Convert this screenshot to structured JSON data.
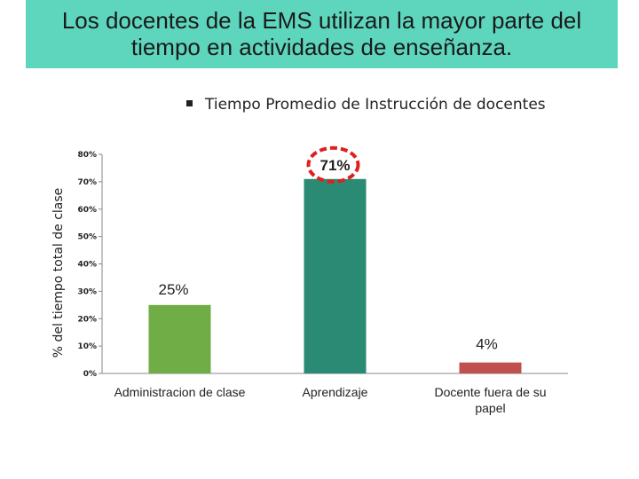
{
  "header": {
    "title_line1": "Los docentes de la EMS utilizan la mayor parte del",
    "title_line2": "tiempo en actividades de enseñanza."
  },
  "subtitle": "Tiempo Promedio de Instrucción de docentes",
  "chart_data": {
    "type": "bar",
    "categories": [
      "Administracion de clase",
      "Aprendizaje",
      "Docente fuera de su papel"
    ],
    "values": [
      25,
      71,
      4
    ],
    "data_labels": [
      "25%",
      "71%",
      "4%"
    ],
    "colors": [
      "#70ad47",
      "#2a8a73",
      "#c0504d"
    ],
    "ylabel": "% del tiempo total de clase",
    "ylim": [
      0,
      80
    ],
    "yticks": [
      "0%",
      "10%",
      "20%",
      "30%",
      "40%",
      "50%",
      "60%",
      "70%",
      "80%"
    ],
    "highlight": {
      "category": "Aprendizaje",
      "marker": "red dashed circle",
      "color": "#e02020"
    },
    "grid": false
  }
}
